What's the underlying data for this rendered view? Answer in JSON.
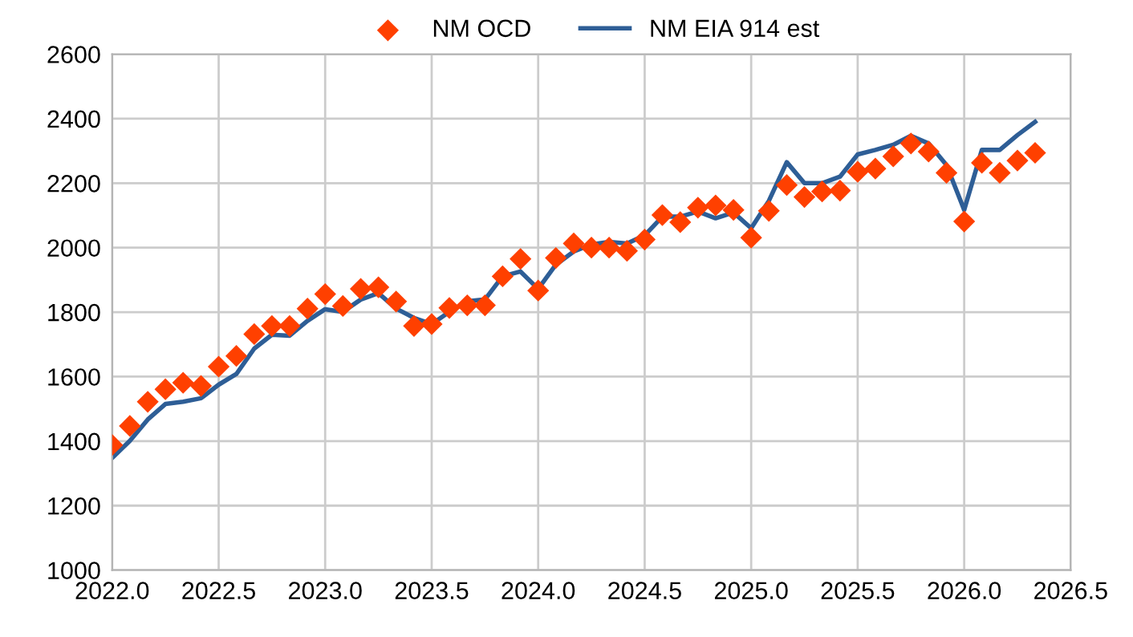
{
  "chart_data": {
    "type": "line",
    "x": [
      2022.0,
      2022.083,
      2022.167,
      2022.25,
      2022.333,
      2022.417,
      2022.5,
      2022.583,
      2022.667,
      2022.75,
      2022.833,
      2022.917,
      2023.0,
      2023.083,
      2023.167,
      2023.25,
      2023.333,
      2023.417,
      2023.5,
      2023.583,
      2023.667,
      2023.75,
      2023.833,
      2023.917,
      2024.0,
      2024.083,
      2024.167,
      2024.25,
      2024.333,
      2024.417,
      2024.5,
      2024.583,
      2024.667,
      2024.75,
      2024.833,
      2024.917,
      2025.0,
      2025.083,
      2025.167,
      2025.25,
      2025.333,
      2025.417,
      2025.5,
      2025.583,
      2025.667,
      2025.75,
      2025.833,
      2025.917,
      2026.0,
      2026.083,
      2026.167,
      2026.25,
      2026.333
    ],
    "series": [
      {
        "name": "NM OCD",
        "type": "scatter",
        "marker": "diamond",
        "color": "#ff4000",
        "values": [
          1388,
          1447,
          1522,
          1561,
          1581,
          1571,
          1631,
          1664,
          1732,
          1757,
          1757,
          1811,
          1856,
          1819,
          1872,
          1877,
          1833,
          1757,
          1763,
          1813,
          1821,
          1821,
          1911,
          1965,
          1867,
          1968,
          2013,
          2000,
          2000,
          1990,
          2025,
          2101,
          2079,
          2124,
          2131,
          2117,
          2031,
          2114,
          2194,
          2157,
          2174,
          2177,
          2235,
          2245,
          2283,
          2323,
          2298,
          2232,
          2081,
          2263,
          2232,
          2270,
          2294
        ]
      },
      {
        "name": "NM EIA 914 est",
        "marker": "none",
        "color": "#2e5e96",
        "values": [
          1348,
          1401,
          1467,
          1515,
          1522,
          1533,
          1575,
          1608,
          1687,
          1730,
          1727,
          1773,
          1809,
          1801,
          1839,
          1859,
          1811,
          1782,
          1763,
          1801,
          1834,
          1839,
          1911,
          1926,
          1872,
          1947,
          1988,
          2010,
          2018,
          2013,
          2038,
          2096,
          2096,
          2112,
          2091,
          2109,
          2060,
          2145,
          2265,
          2200,
          2200,
          2220,
          2289,
          2303,
          2319,
          2347,
          2323,
          2256,
          2117,
          2303,
          2303,
          2349,
          2390
        ]
      }
    ],
    "xlim": [
      2022.0,
      2026.5
    ],
    "xticks": [
      {
        "value": 2022.0,
        "label": "2022.0"
      },
      {
        "value": 2022.5,
        "label": "2022.5"
      },
      {
        "value": 2023.0,
        "label": "2023.0"
      },
      {
        "value": 2023.5,
        "label": "2023.5"
      },
      {
        "value": 2024.0,
        "label": "2024.0"
      },
      {
        "value": 2024.5,
        "label": "2024.5"
      },
      {
        "value": 2025.0,
        "label": "2025.0"
      },
      {
        "value": 2025.5,
        "label": "2025.5"
      },
      {
        "value": 2026.0,
        "label": "2026.0"
      },
      {
        "value": 2026.5,
        "label": "2026.5"
      }
    ],
    "ylim": [
      1000,
      2600
    ],
    "yticks": [
      1000,
      1200,
      1400,
      1600,
      1800,
      2000,
      2200,
      2400,
      2600
    ],
    "grid": true,
    "legend": "top"
  }
}
